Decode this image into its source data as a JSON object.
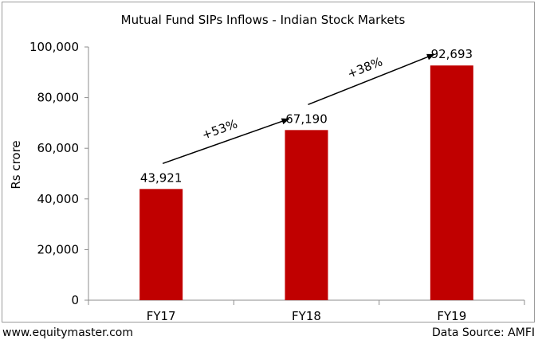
{
  "chart_data": {
    "type": "bar",
    "title": "Mutual Fund SIPs Inflows - Indian Stock Markets",
    "xlabel": "",
    "ylabel": "Rs crore",
    "categories": [
      "FY17",
      "FY18",
      "FY19"
    ],
    "values": [
      43921,
      67190,
      92693
    ],
    "data_labels": [
      "43,921",
      "67,190",
      "92,693"
    ],
    "ylim": [
      0,
      100000
    ],
    "yticks": [
      0,
      20000,
      40000,
      60000,
      80000,
      100000
    ],
    "ytick_labels": [
      "0",
      "20,000",
      "40,000",
      "60,000",
      "80,000",
      "100,000"
    ],
    "bar_color": "#c00000",
    "grid": false,
    "legend": "none",
    "annotations": [
      {
        "text": "+53%",
        "from": "FY17",
        "to": "FY18"
      },
      {
        "text": "+38%",
        "from": "FY18",
        "to": "FY19"
      }
    ]
  },
  "footer": {
    "website": "www.equitymaster.com",
    "source": "Data Source: AMFI"
  }
}
